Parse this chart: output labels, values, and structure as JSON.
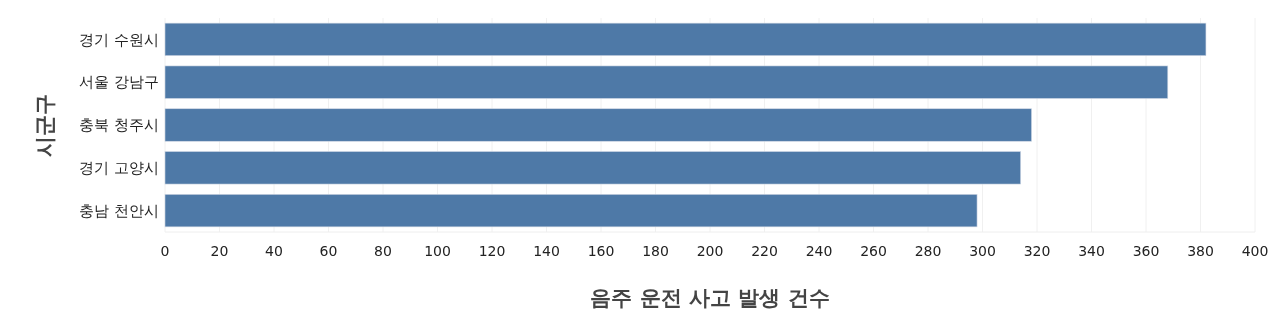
{
  "chart_data": {
    "type": "bar",
    "orientation": "horizontal",
    "categories": [
      "경기 수원시",
      "서울 강남구",
      "충북 청주시",
      "경기 고양시",
      "충남 천안시"
    ],
    "values": [
      382,
      368,
      318,
      314,
      298
    ],
    "color": "#4e79a7",
    "xlabel": "음주 운전 사고 발생 건수",
    "ylabel": "시군구",
    "xlim": [
      0,
      400
    ],
    "xticks": [
      0,
      20,
      40,
      60,
      80,
      100,
      120,
      140,
      160,
      180,
      200,
      220,
      240,
      260,
      280,
      300,
      320,
      340,
      360,
      380,
      400
    ],
    "grid": "x"
  }
}
